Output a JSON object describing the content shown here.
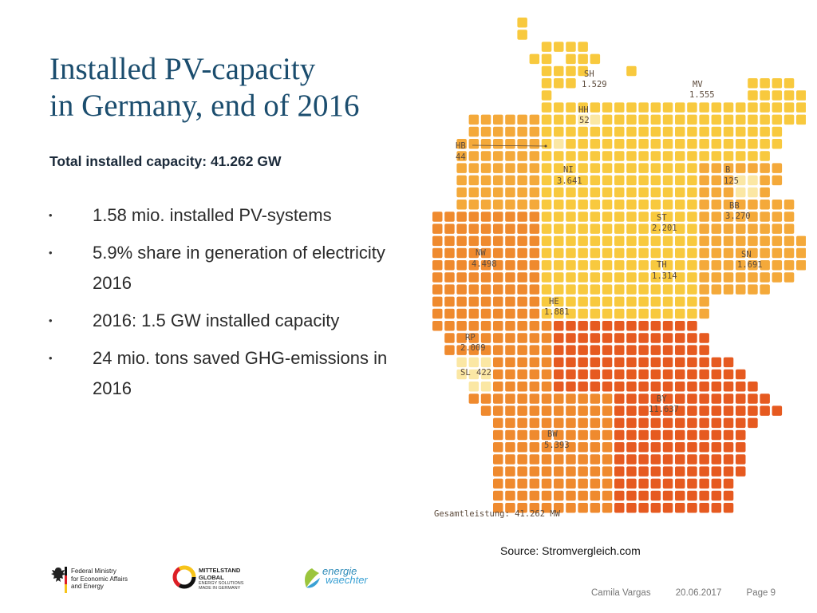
{
  "slide": {
    "title_line1": "Installed PV-capacity",
    "title_line2": "in Germany, end of 2016",
    "subtitle": "Total installed capacity: 41.262 GW",
    "bullets": [
      "1.58 mio. installed PV-systems",
      "5.9% share in generation of electricity 2016",
      "2016: 1.5 GW installed capacity",
      "24 mio. tons saved GHG-emissions in 2016"
    ],
    "source": "Source: Stromvergleich.com"
  },
  "map": {
    "total_label": "Gesamtleistung: 41.262 MW",
    "states": [
      {
        "code": "SH",
        "value": "1.529"
      },
      {
        "code": "MV",
        "value": "1.555"
      },
      {
        "code": "HH",
        "value": "52"
      },
      {
        "code": "HB",
        "value": "44"
      },
      {
        "code": "NI",
        "value": "3.641"
      },
      {
        "code": "B",
        "value": "125"
      },
      {
        "code": "BB",
        "value": "3.270"
      },
      {
        "code": "ST",
        "value": "2.201"
      },
      {
        "code": "NW",
        "value": "4.498"
      },
      {
        "code": "SN",
        "value": "1.691"
      },
      {
        "code": "TH",
        "value": "1.314"
      },
      {
        "code": "HE",
        "value": "1.881"
      },
      {
        "code": "RP",
        "value": "2.009"
      },
      {
        "code": "SL",
        "value": "422"
      },
      {
        "code": "BY",
        "value": "11.637"
      },
      {
        "code": "BW",
        "value": "5.393"
      }
    ],
    "colors": {
      "very_light": "#fbe7a4",
      "yellow": "#f8c93e",
      "light_orange": "#f4a93a",
      "orange": "#ef8a2e",
      "red_orange": "#e65a20",
      "label": "#5c4a3b"
    }
  },
  "logos": {
    "ministry_lines": [
      "Federal Ministry",
      "for Economic Affairs",
      "and Energy"
    ],
    "mittel_line1": "MITTELSTAND",
    "mittel_line2": "GLOBAL",
    "mittel_sub1": "ENERGY SOLUTIONS",
    "mittel_sub2": "MADE IN GERMANY",
    "energie_line1": "energie",
    "energie_line2": "waechter"
  },
  "footer": {
    "author": "Camila Vargas",
    "date": "20.06.2017",
    "page": "Page 9"
  }
}
